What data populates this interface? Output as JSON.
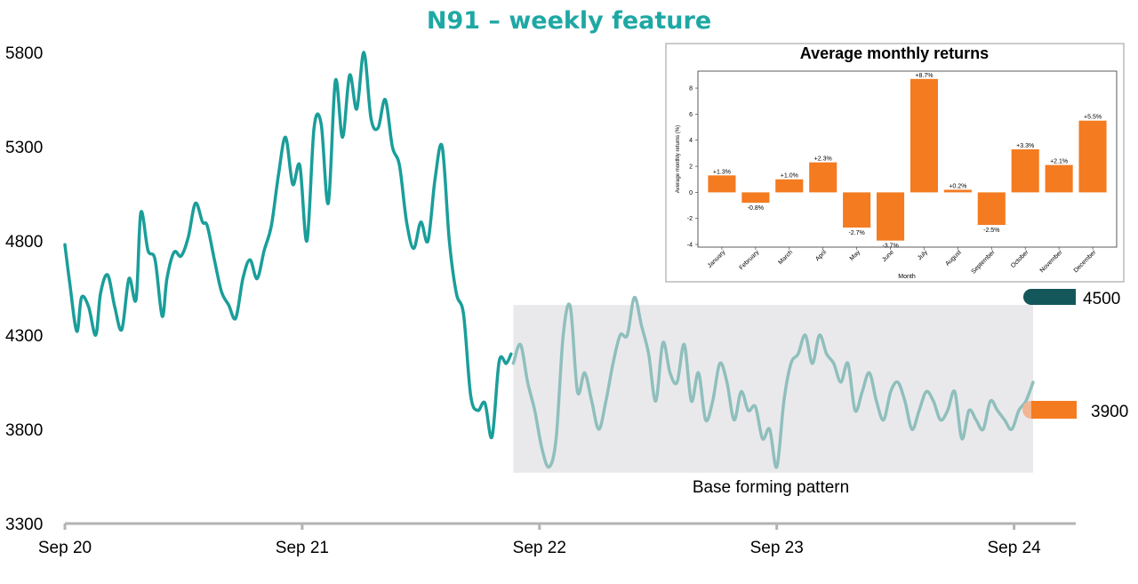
{
  "title": "N91 – weekly feature",
  "colors": {
    "title": "#1ea8a4",
    "price_line": "#1a9e9a",
    "price_line_faded": "#8fbfbd",
    "base_box": "#e9e9eb",
    "axis": "#b3b3b3",
    "resistance": "#14575a",
    "support": "#f47b20",
    "bar": "#f47b20"
  },
  "levels": {
    "resistance_label": "4500",
    "support_label": "3900"
  },
  "annotation": {
    "base_label": "Base forming pattern"
  },
  "chart_data": [
    {
      "type": "line",
      "y_ticks": [
        "5800",
        "5300",
        "4800",
        "4300",
        "3800",
        "3300"
      ],
      "y_tick_values": [
        5800,
        5300,
        4800,
        4300,
        3800,
        3300
      ],
      "x_ticks": [
        "Sep 20",
        "Sep 21",
        "Sep 22",
        "Sep 23",
        "Sep 24"
      ],
      "ylim": [
        3300,
        5800
      ],
      "xlim": [
        0,
        4.26
      ],
      "base_region": {
        "x": [
          1.89,
          4.08
        ],
        "y": [
          3570,
          4460
        ]
      },
      "horizontal_levels": [
        4500,
        3900
      ],
      "series": [
        {
          "x": [
            0.0,
            0.02,
            0.05,
            0.07,
            0.1,
            0.13,
            0.15,
            0.18,
            0.21,
            0.24,
            0.27,
            0.3,
            0.32,
            0.35,
            0.38,
            0.41,
            0.43,
            0.46,
            0.49,
            0.52,
            0.55,
            0.58,
            0.6,
            0.63,
            0.66,
            0.69,
            0.72,
            0.75,
            0.78,
            0.81,
            0.84,
            0.87,
            0.9,
            0.93,
            0.96,
            0.99,
            1.02,
            1.05,
            1.08,
            1.11,
            1.14,
            1.17,
            1.2,
            1.23,
            1.26,
            1.29,
            1.32,
            1.35,
            1.38,
            1.41,
            1.44,
            1.47,
            1.5,
            1.53,
            1.56,
            1.59,
            1.62,
            1.65,
            1.68,
            1.71,
            1.74,
            1.77,
            1.8,
            1.83,
            1.86,
            1.88
          ],
          "values": [
            4780,
            4580,
            4320,
            4500,
            4450,
            4300,
            4520,
            4620,
            4450,
            4330,
            4600,
            4490,
            4950,
            4750,
            4700,
            4400,
            4600,
            4740,
            4720,
            4820,
            5000,
            4900,
            4880,
            4700,
            4530,
            4460,
            4390,
            4600,
            4700,
            4600,
            4750,
            4880,
            5150,
            5350,
            5100,
            5200,
            4800,
            5400,
            5420,
            5000,
            5650,
            5350,
            5680,
            5500,
            5800,
            5450,
            5400,
            5550,
            5300,
            5200,
            4900,
            4760,
            4900,
            4800,
            5130,
            5300,
            4800,
            4520,
            4410,
            3980,
            3900,
            3940,
            3760,
            4160,
            4150,
            4200
          ]
        },
        {
          "x": [
            1.89,
            1.92,
            1.95,
            1.98,
            2.01,
            2.04,
            2.07,
            2.1,
            2.13,
            2.16,
            2.19,
            2.22,
            2.25,
            2.28,
            2.31,
            2.34,
            2.37,
            2.4,
            2.43,
            2.46,
            2.49,
            2.52,
            2.55,
            2.58,
            2.61,
            2.64,
            2.67,
            2.7,
            2.73,
            2.76,
            2.79,
            2.82,
            2.85,
            2.88,
            2.91,
            2.94,
            2.97,
            3.0,
            3.03,
            3.06,
            3.09,
            3.12,
            3.15,
            3.18,
            3.21,
            3.24,
            3.27,
            3.3,
            3.33,
            3.36,
            3.39,
            3.42,
            3.45,
            3.48,
            3.51,
            3.54,
            3.57,
            3.6,
            3.63,
            3.66,
            3.69,
            3.72,
            3.75,
            3.78,
            3.81,
            3.84,
            3.87,
            3.9,
            3.93,
            3.96,
            3.99,
            4.02,
            4.05,
            4.08
          ],
          "values": [
            4150,
            4250,
            4050,
            3900,
            3700,
            3600,
            3750,
            4300,
            4450,
            4000,
            4100,
            3950,
            3800,
            3950,
            4150,
            4300,
            4300,
            4500,
            4350,
            4200,
            3950,
            4260,
            4100,
            4050,
            4250,
            3950,
            4100,
            3850,
            3950,
            4150,
            4050,
            3850,
            4000,
            3900,
            3920,
            3750,
            3800,
            3600,
            3950,
            4150,
            4200,
            4300,
            4150,
            4300,
            4200,
            4150,
            4050,
            4150,
            3900,
            4000,
            4100,
            3950,
            3850,
            4000,
            4050,
            3950,
            3800,
            3900,
            4000,
            3950,
            3850,
            3900,
            4000,
            3750,
            3900,
            3850,
            3800,
            3950,
            3900,
            3850,
            3800,
            3900,
            3950,
            4050
          ]
        }
      ]
    },
    {
      "type": "bar",
      "title": "Average monthly returns",
      "xlabel": "Month",
      "ylabel": "Average monthly returns (%)",
      "ylim": [
        -4.2,
        9.3
      ],
      "y_ticks": [
        "8",
        "6",
        "4",
        "2",
        "0",
        "-2",
        "-4"
      ],
      "y_tick_values": [
        8,
        6,
        4,
        2,
        0,
        -2,
        -4
      ],
      "categories": [
        "January",
        "February",
        "March",
        "April",
        "May",
        "June",
        "July",
        "August",
        "September",
        "October",
        "November",
        "December"
      ],
      "values": [
        1.3,
        -0.8,
        1.0,
        2.3,
        -2.7,
        -3.7,
        8.7,
        0.2,
        -2.5,
        3.3,
        2.1,
        5.5
      ],
      "data_labels": [
        "+1.3%",
        "-0.8%",
        "+1.0%",
        "+2.3%",
        "-2.7%",
        "-3.7%",
        "+8.7%",
        "+0.2%",
        "-2.5%",
        "+3.3%",
        "+2.1%",
        "+5.5%"
      ]
    }
  ]
}
